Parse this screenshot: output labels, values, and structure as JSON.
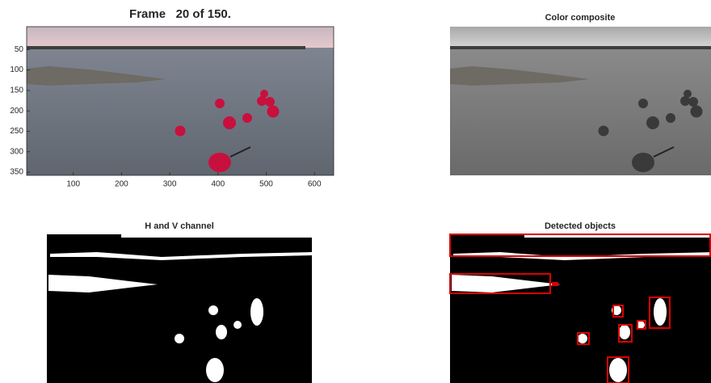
{
  "panels": [
    {
      "title": "Frame   20 of 150.",
      "xticks": [
        100,
        200,
        300,
        400,
        500,
        600
      ],
      "yticks": [
        50,
        100,
        150,
        200,
        250,
        300,
        350
      ]
    },
    {
      "title": "Color composite"
    },
    {
      "title": "H and V channel"
    },
    {
      "title": "Detected objects"
    }
  ]
}
